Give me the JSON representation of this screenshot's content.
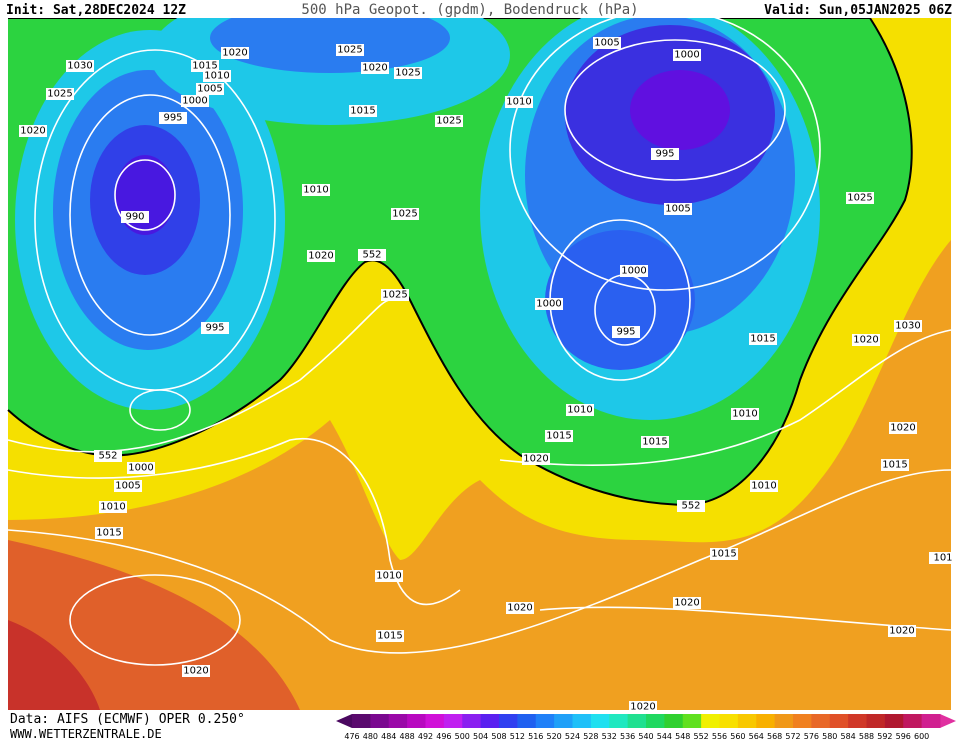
{
  "header": {
    "init": "Init: Sat,28DEC2024 12Z",
    "title": "500 hPa Geopot. (gpdm), Bodendruck (hPa)",
    "valid": "Valid: Sun,05JAN2025 06Z"
  },
  "contour_labels": [
    1030,
    1025,
    1020,
    1020,
    1015,
    1010,
    1005,
    1000,
    995,
    990,
    995,
    1025,
    1020,
    1025,
    1015,
    1025,
    1010,
    1025,
    1020,
    552,
    1025,
    1005,
    1000,
    1010,
    995,
    1005,
    1025,
    1000,
    1000,
    995,
    1015,
    1030,
    1020,
    1010,
    1015,
    1015,
    1010,
    1020,
    1020,
    1015,
    1010,
    552,
    552,
    1000,
    1005,
    1010,
    1015,
    1015,
    101,
    1010,
    1020,
    1020,
    1015,
    1020,
    1020,
    1020
  ],
  "colorbar": {
    "ticks": [
      476,
      480,
      484,
      488,
      492,
      496,
      500,
      504,
      508,
      512,
      516,
      520,
      524,
      528,
      532,
      536,
      540,
      544,
      548,
      552,
      556,
      560,
      564,
      568,
      572,
      576,
      580,
      584,
      588,
      592,
      596,
      600
    ],
    "colors": [
      "#5a0a6e",
      "#7a0890",
      "#9a08a8",
      "#b808c0",
      "#d010d8",
      "#c020f0",
      "#8a20f0",
      "#5a20f0",
      "#3040f0",
      "#2060f0",
      "#2080f8",
      "#20a0f8",
      "#20c0f8",
      "#20e0f0",
      "#20e8c0",
      "#20e090",
      "#20d860",
      "#30d030",
      "#60e020",
      "#f0f000",
      "#f8e000",
      "#f8c800",
      "#f8b000",
      "#f09818",
      "#f08020",
      "#e86828",
      "#e05028",
      "#d03828",
      "#c02828",
      "#b01830",
      "#c01860",
      "#d02090"
    ]
  },
  "footer": {
    "source": "Data: AIFS (ECMWF) OPER 0.250°",
    "site": "WWW.WETTERZENTRALE.DE"
  }
}
